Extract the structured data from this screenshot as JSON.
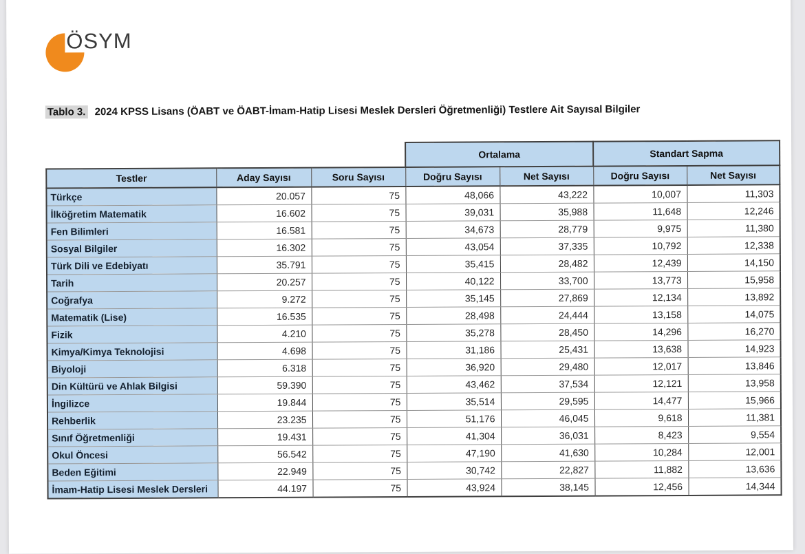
{
  "logo": {
    "text": "ÖSYM"
  },
  "title": {
    "label": "Tablo 3.",
    "text": "2024 KPSS Lisans (ÖABT ve ÖABT-İmam-Hatip Lisesi Meslek Dersleri Öğretmenliği) Testlere Ait Sayısal Bilgiler"
  },
  "colors": {
    "header_blue": "#BDD7EE",
    "logo_orange": "#F08A1D",
    "caption_highlight": "#D6D6D6",
    "border_dark": "#3F3F3F"
  },
  "table": {
    "group_headers": [
      "Ortalama",
      "Standart Sapma"
    ],
    "columns": [
      "Testler",
      "Aday Sayısı",
      "Soru Sayısı",
      "Doğru Sayısı",
      "Net Sayısı",
      "Doğru Sayısı",
      "Net Sayısı"
    ],
    "rows": [
      [
        "Türkçe",
        "20.057",
        "75",
        "48,066",
        "43,222",
        "10,007",
        "11,303"
      ],
      [
        "İlköğretim Matematik",
        "16.602",
        "75",
        "39,031",
        "35,988",
        "11,648",
        "12,246"
      ],
      [
        "Fen Bilimleri",
        "16.581",
        "75",
        "34,673",
        "28,779",
        "9,975",
        "11,380"
      ],
      [
        "Sosyal Bilgiler",
        "16.302",
        "75",
        "43,054",
        "37,335",
        "10,792",
        "12,338"
      ],
      [
        "Türk Dili ve Edebiyatı",
        "35.791",
        "75",
        "35,415",
        "28,482",
        "12,439",
        "14,150"
      ],
      [
        "Tarih",
        "20.257",
        "75",
        "40,122",
        "33,700",
        "13,773",
        "15,958"
      ],
      [
        "Coğrafya",
        "9.272",
        "75",
        "35,145",
        "27,869",
        "12,134",
        "13,892"
      ],
      [
        "Matematik (Lise)",
        "16.535",
        "75",
        "28,498",
        "24,444",
        "13,158",
        "14,075"
      ],
      [
        "Fizik",
        "4.210",
        "75",
        "35,278",
        "28,450",
        "14,296",
        "16,270"
      ],
      [
        "Kimya/Kimya Teknolojisi",
        "4.698",
        "75",
        "31,186",
        "25,431",
        "13,638",
        "14,923"
      ],
      [
        "Biyoloji",
        "6.318",
        "75",
        "36,920",
        "29,480",
        "12,017",
        "13,846"
      ],
      [
        "Din Kültürü ve Ahlak Bilgisi",
        "59.390",
        "75",
        "43,462",
        "37,534",
        "12,121",
        "13,958"
      ],
      [
        "İngilizce",
        "19.844",
        "75",
        "35,514",
        "29,595",
        "14,477",
        "15,966"
      ],
      [
        "Rehberlik",
        "23.235",
        "75",
        "51,176",
        "46,045",
        "9,618",
        "11,381"
      ],
      [
        "Sınıf Öğretmenliği",
        "19.431",
        "75",
        "41,304",
        "36,031",
        "8,423",
        "9,554"
      ],
      [
        "Okul Öncesi",
        "56.542",
        "75",
        "47,190",
        "41,630",
        "10,284",
        "12,001"
      ],
      [
        "Beden Eğitimi",
        "22.949",
        "75",
        "30,742",
        "22,827",
        "11,882",
        "13,636"
      ],
      [
        "İmam-Hatip Lisesi Meslek Dersleri",
        "44.197",
        "75",
        "43,924",
        "38,145",
        "12,456",
        "14,344"
      ]
    ]
  }
}
